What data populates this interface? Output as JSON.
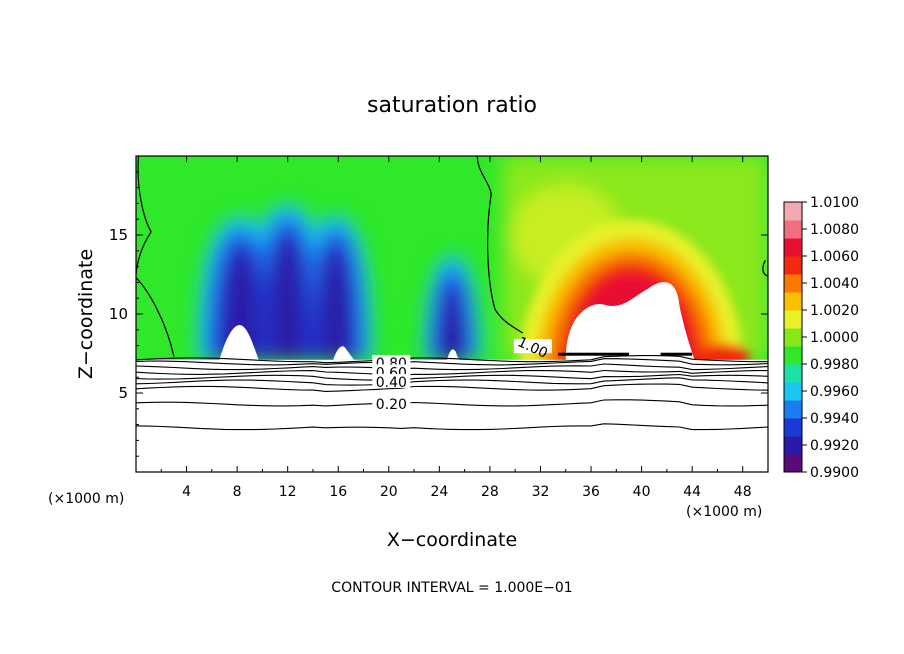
{
  "chart_data": {
    "type": "heatmap",
    "title": "saturation ratio",
    "xlabel": "X−coordinate",
    "ylabel": "Z−coordinate",
    "x_unit_left": "(×1000 m)",
    "x_unit_right": "(×1000 m)",
    "footer": "CONTOUR INTERVAL = 1.000E−01",
    "xlim": [
      0,
      50
    ],
    "ylim": [
      0,
      20
    ],
    "x_ticks": [
      4,
      8,
      12,
      16,
      20,
      24,
      28,
      32,
      36,
      40,
      44,
      48
    ],
    "y_ticks": [
      5,
      10,
      15
    ],
    "colorbar": {
      "levels": [
        "1.0100",
        "1.0080",
        "1.0060",
        "1.0040",
        "1.0020",
        "1.0000",
        "0.9980",
        "0.9960",
        "0.9940",
        "0.9920",
        "0.9900"
      ],
      "colors": [
        "#5a0a7a",
        "#2a1aa8",
        "#1a3ad8",
        "#1a7ef0",
        "#19c8f0",
        "#1ee0a8",
        "#2fe82a",
        "#8ae81a",
        "#e8f02a",
        "#f8c000",
        "#f87800",
        "#f02a10",
        "#e81030",
        "#f07080",
        "#f4a8b4"
      ]
    },
    "contour_labels": [
      {
        "text": "0.80",
        "x": 20.2,
        "z": 6.9
      },
      {
        "text": "0.60",
        "x": 20.2,
        "z": 6.3
      },
      {
        "text": "0.40",
        "x": 20.2,
        "z": 5.7
      },
      {
        "text": "0.20",
        "x": 20.2,
        "z": 4.3
      },
      {
        "text": "1.00",
        "x": 31.4,
        "z": 7.9
      }
    ],
    "contour_levels_below": [
      {
        "level": 0.9,
        "z": 7.1
      },
      {
        "level": 0.8,
        "z": 6.9
      },
      {
        "level": 0.7,
        "z": 6.6
      },
      {
        "level": 0.6,
        "z": 6.3
      },
      {
        "level": 0.5,
        "z": 6.0
      },
      {
        "level": 0.4,
        "z": 5.7
      },
      {
        "level": 0.3,
        "z": 5.3
      },
      {
        "level": 0.2,
        "z": 4.3
      },
      {
        "level": 0.1,
        "z": 2.8
      }
    ],
    "features": [
      {
        "kind": "subsaturated-plume",
        "x": 8,
        "z_top": 16,
        "min_value": 0.992
      },
      {
        "kind": "subsaturated-plume",
        "x": 12,
        "z_top": 17,
        "min_value": 0.991
      },
      {
        "kind": "subsaturated-plume",
        "x": 16,
        "z_top": 16,
        "min_value": 0.991
      },
      {
        "kind": "subsaturated-plume",
        "x": 25,
        "z_top": 13,
        "min_value": 0.993
      },
      {
        "kind": "supersaturated-plume",
        "x": 40,
        "z_top": 14,
        "max_value": 1.01
      }
    ]
  }
}
